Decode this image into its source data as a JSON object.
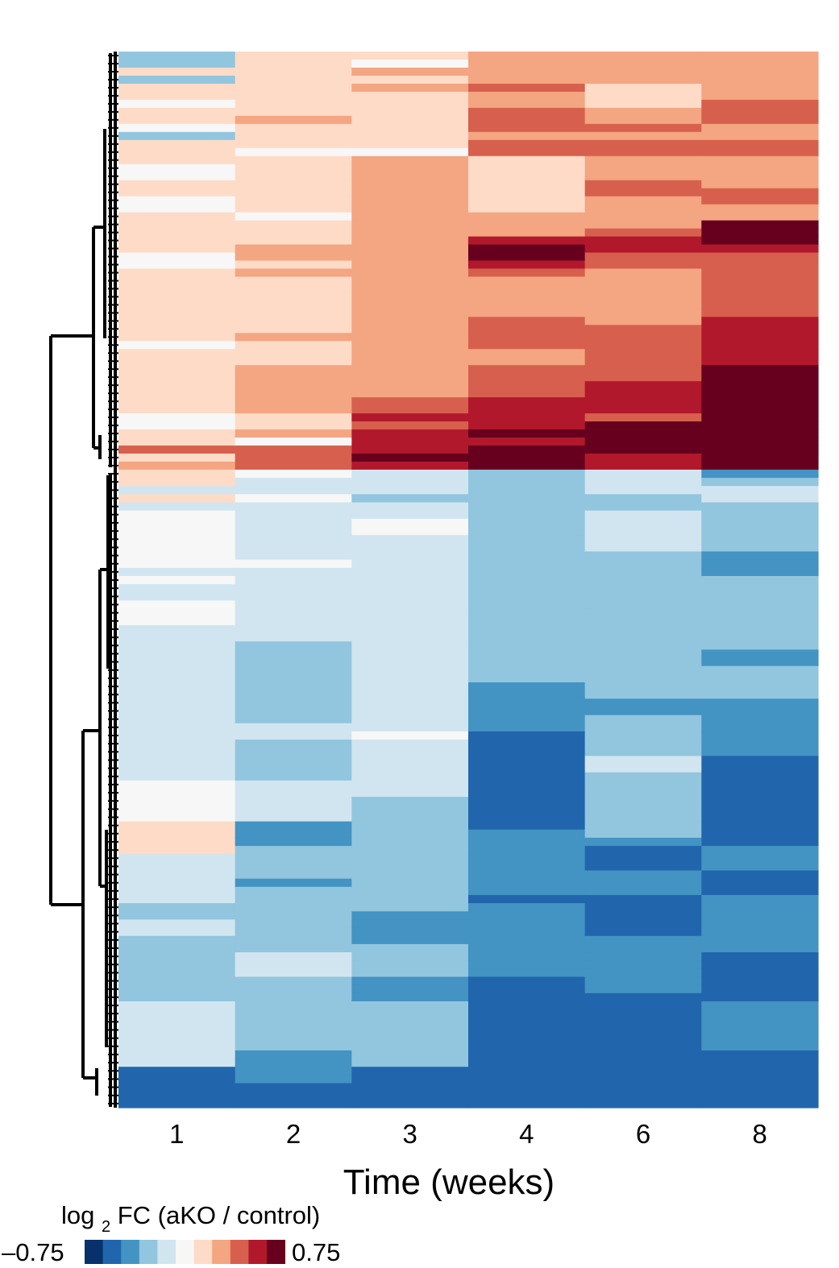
{
  "chart_data": {
    "type": "heatmap",
    "xlabel": "Time (weeks)",
    "columns": [
      "1",
      "2",
      "3",
      "4",
      "6",
      "8"
    ],
    "legend": {
      "title_main": "log",
      "title_sub": "2",
      "title_rest": " FC (aKO / control)",
      "min_label": "–0.75",
      "max_label": "0.75",
      "min": -0.75,
      "max": 0.75,
      "palette": [
        "#08306b",
        "#2166ac",
        "#4393c3",
        "#92c5de",
        "#d1e5f0",
        "#f7f7f7",
        "#fddbc7",
        "#f4a582",
        "#d6604d",
        "#b2182b",
        "#67001f"
      ]
    },
    "clusters": [
      {
        "name": "",
        "n_rows": 52,
        "trend": "up"
      },
      {
        "name": "",
        "n_rows": 78,
        "trend": "down"
      }
    ],
    "rows_per_time_point": [
      {
        "label": "1",
        "upregulated_block": [
          3,
          3,
          6,
          3,
          6,
          6,
          5,
          6,
          6,
          5,
          3,
          6,
          6,
          6,
          5,
          5,
          6,
          6,
          5,
          5,
          6,
          6,
          6,
          6,
          6,
          5,
          5,
          6,
          6,
          6,
          6,
          6,
          6,
          6,
          6,
          6,
          5,
          6,
          6,
          6,
          6,
          6,
          6,
          6,
          6,
          5,
          5,
          6,
          6,
          8,
          6,
          7
        ],
        "downregulated_block": [
          6,
          6,
          4,
          6,
          4,
          5,
          5,
          5,
          5,
          5,
          5,
          5,
          4,
          5,
          4,
          4,
          5,
          5,
          5,
          4,
          4,
          4,
          4,
          4,
          4,
          4,
          4,
          4,
          4,
          4,
          4,
          4,
          4,
          4,
          4,
          4,
          4,
          4,
          5,
          5,
          5,
          5,
          5,
          6,
          6,
          6,
          6,
          4,
          4,
          4,
          4,
          4,
          4,
          3,
          3,
          4,
          4,
          3,
          3,
          3,
          3,
          3,
          3,
          3,
          3,
          4,
          4,
          4,
          4,
          4,
          4,
          4,
          4,
          1,
          1,
          1,
          1,
          1
        ]
      },
      {
        "label": "2",
        "upregulated_block": [
          6,
          6,
          6,
          6,
          6,
          6,
          6,
          6,
          7,
          6,
          6,
          6,
          5,
          6,
          6,
          6,
          6,
          6,
          6,
          6,
          5,
          6,
          6,
          6,
          7,
          7,
          6,
          7,
          6,
          6,
          6,
          6,
          6,
          6,
          6,
          7,
          6,
          6,
          6,
          7,
          7,
          7,
          7,
          7,
          7,
          6,
          6,
          7,
          5,
          8,
          8,
          8
        ],
        "downregulated_block": [
          5,
          4,
          4,
          5,
          4,
          4,
          4,
          4,
          4,
          4,
          4,
          5,
          4,
          4,
          4,
          4,
          4,
          4,
          4,
          4,
          4,
          3,
          3,
          3,
          3,
          3,
          3,
          3,
          3,
          3,
          3,
          4,
          4,
          3,
          3,
          3,
          3,
          3,
          4,
          4,
          4,
          4,
          4,
          2,
          2,
          2,
          3,
          3,
          3,
          3,
          2,
          3,
          3,
          3,
          3,
          3,
          3,
          3,
          3,
          4,
          4,
          4,
          3,
          3,
          3,
          3,
          3,
          3,
          3,
          3,
          3,
          2,
          2,
          2,
          2,
          1,
          1,
          1
        ]
      },
      {
        "label": "3",
        "upregulated_block": [
          6,
          5,
          7,
          6,
          7,
          6,
          6,
          6,
          6,
          6,
          6,
          6,
          5,
          7,
          7,
          7,
          7,
          7,
          7,
          7,
          7,
          7,
          7,
          7,
          7,
          7,
          7,
          7,
          7,
          7,
          7,
          7,
          7,
          7,
          7,
          7,
          7,
          7,
          7,
          7,
          7,
          7,
          7,
          8,
          8,
          9,
          8,
          9,
          9,
          9,
          10,
          9
        ],
        "downregulated_block": [
          4,
          4,
          4,
          3,
          4,
          4,
          5,
          5,
          4,
          4,
          4,
          4,
          4,
          4,
          4,
          4,
          4,
          4,
          4,
          4,
          4,
          4,
          4,
          4,
          4,
          4,
          4,
          4,
          4,
          4,
          4,
          4,
          5,
          4,
          4,
          4,
          4,
          4,
          4,
          4,
          3,
          3,
          3,
          3,
          3,
          3,
          3,
          3,
          3,
          3,
          3,
          3,
          3,
          3,
          2,
          2,
          2,
          2,
          3,
          3,
          3,
          3,
          2,
          2,
          2,
          3,
          3,
          3,
          3,
          3,
          3,
          3,
          3,
          1,
          1,
          1,
          1,
          1
        ]
      },
      {
        "label": "4",
        "upregulated_block": [
          7,
          7,
          7,
          7,
          8,
          7,
          7,
          8,
          8,
          8,
          7,
          8,
          8,
          6,
          6,
          6,
          6,
          6,
          6,
          6,
          7,
          7,
          7,
          9,
          10,
          10,
          9,
          8,
          7,
          7,
          7,
          7,
          7,
          8,
          8,
          8,
          8,
          7,
          7,
          8,
          8,
          8,
          8,
          9,
          9,
          9,
          9,
          10,
          9,
          10,
          10,
          10
        ],
        "downregulated_block": [
          3,
          3,
          3,
          3,
          3,
          3,
          3,
          3,
          3,
          3,
          3,
          3,
          3,
          3,
          3,
          3,
          3,
          3,
          3,
          3,
          3,
          3,
          3,
          3,
          3,
          3,
          2,
          2,
          2,
          2,
          2,
          2,
          1,
          1,
          1,
          1,
          1,
          1,
          1,
          1,
          1,
          1,
          1,
          1,
          2,
          2,
          2,
          2,
          2,
          2,
          2,
          2,
          1,
          2,
          2,
          2,
          2,
          2,
          2,
          2,
          2,
          2,
          1,
          1,
          1,
          1,
          1,
          1,
          1,
          1,
          1,
          1,
          1,
          1,
          1,
          1,
          1,
          1
        ]
      },
      {
        "label": "6",
        "upregulated_block": [
          7,
          7,
          7,
          7,
          6,
          6,
          6,
          7,
          7,
          8,
          7,
          8,
          8,
          7,
          7,
          7,
          8,
          8,
          7,
          7,
          7,
          7,
          8,
          9,
          9,
          8,
          8,
          7,
          7,
          7,
          7,
          7,
          7,
          7,
          8,
          8,
          8,
          8,
          8,
          8,
          8,
          9,
          9,
          9,
          9,
          8,
          10,
          10,
          10,
          10,
          9,
          9
        ],
        "downregulated_block": [
          4,
          4,
          4,
          3,
          3,
          4,
          4,
          4,
          4,
          4,
          3,
          3,
          3,
          3,
          3,
          3,
          3,
          3,
          3,
          3,
          3,
          3,
          3,
          3,
          3,
          3,
          3,
          3,
          2,
          2,
          3,
          3,
          3,
          3,
          3,
          4,
          4,
          3,
          3,
          3,
          3,
          3,
          3,
          3,
          3,
          2,
          1,
          1,
          1,
          2,
          2,
          2,
          1,
          1,
          1,
          1,
          1,
          2,
          2,
          2,
          2,
          2,
          2,
          2,
          1,
          1,
          1,
          1,
          1,
          1,
          1,
          1,
          1,
          1,
          1,
          1,
          1,
          1
        ]
      },
      {
        "label": "8",
        "upregulated_block": [
          7,
          7,
          7,
          7,
          7,
          7,
          8,
          8,
          8,
          7,
          7,
          8,
          8,
          7,
          7,
          7,
          7,
          8,
          8,
          7,
          7,
          10,
          10,
          10,
          9,
          8,
          8,
          8,
          8,
          8,
          8,
          8,
          8,
          9,
          9,
          9,
          9,
          9,
          9,
          10,
          10,
          10,
          10,
          10,
          10,
          10,
          10,
          10,
          10,
          10,
          10,
          10
        ],
        "downregulated_block": [
          2,
          3,
          4,
          4,
          3,
          3,
          3,
          3,
          3,
          3,
          2,
          2,
          2,
          3,
          3,
          3,
          3,
          3,
          3,
          3,
          3,
          3,
          2,
          2,
          3,
          3,
          3,
          3,
          2,
          2,
          2,
          2,
          2,
          2,
          2,
          1,
          1,
          1,
          1,
          1,
          1,
          1,
          1,
          1,
          1,
          1,
          2,
          2,
          2,
          1,
          1,
          1,
          2,
          2,
          2,
          2,
          2,
          2,
          2,
          1,
          1,
          1,
          1,
          1,
          1,
          2,
          2,
          2,
          2,
          2,
          2,
          1,
          1,
          1,
          1,
          1,
          1,
          1
        ]
      }
    ]
  }
}
